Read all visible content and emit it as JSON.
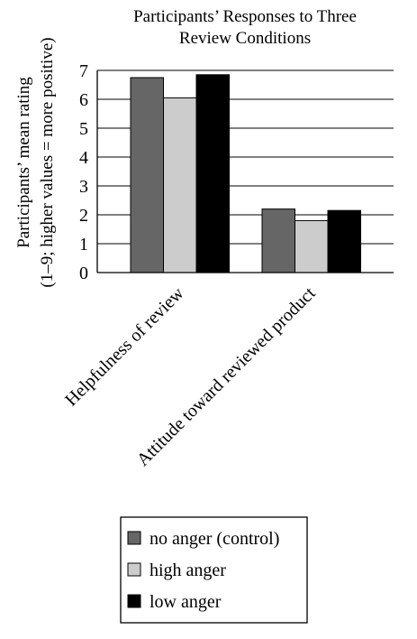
{
  "chart_data": {
    "type": "bar",
    "title_lines": [
      "Participants’ Responses to Three",
      "Review Conditions"
    ],
    "ylabel_lines": [
      "Participants’ mean rating",
      "(1–9; higher values = more positive)"
    ],
    "categories": [
      "Helpfulness of review",
      "Attitude toward reviewed product"
    ],
    "series": [
      {
        "name": "no anger (control)",
        "values": [
          6.75,
          2.2
        ],
        "color": "#666666"
      },
      {
        "name": "high anger",
        "values": [
          6.05,
          1.8
        ],
        "color": "#cccccc"
      },
      {
        "name": "low anger",
        "values": [
          6.85,
          2.15
        ],
        "color": "#000000"
      }
    ],
    "ylim": [
      0,
      7
    ],
    "yticks": [
      "0",
      "1",
      "2",
      "3",
      "4",
      "5",
      "6",
      "7"
    ],
    "grid": true,
    "legend_position": "bottom"
  }
}
